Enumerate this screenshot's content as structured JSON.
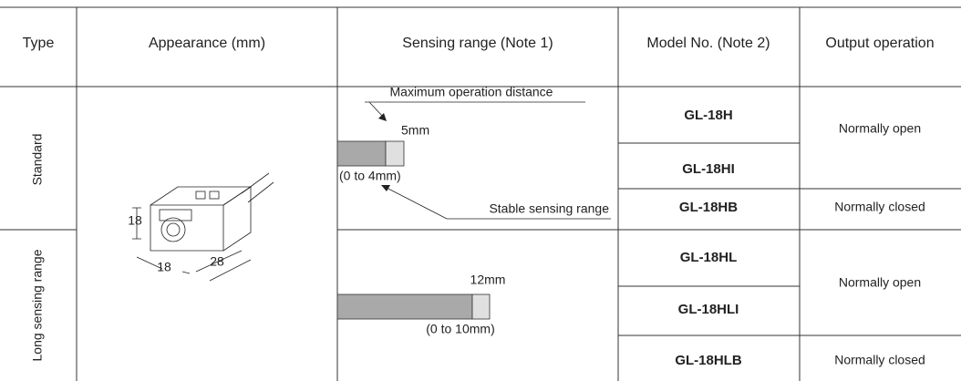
{
  "header": [
    "Type",
    "Appearance (mm)",
    "Sensing range (Note 1)",
    "Model No. (Note 2)",
    "Output operation"
  ],
  "appearance": {
    "dims": [
      "18",
      "18",
      "28"
    ]
  },
  "groups": [
    {
      "type": "Standard",
      "sensing": {
        "max_label": "Maximum operation distance",
        "distance": "5mm",
        "stable": "(0 to 4mm)",
        "stable_label": "Stable sensing range"
      },
      "models": [
        "GL-18H",
        "GL-18HI",
        "GL-18HB"
      ],
      "outputs": [
        "Normally open",
        "Normally closed"
      ]
    },
    {
      "type": "Long sensing range",
      "sensing": {
        "distance": "12mm",
        "stable": "(0 to 10mm)"
      },
      "models": [
        "GL-18HL",
        "GL-18HLI",
        "GL-18HLB"
      ],
      "outputs": [
        "Normally open",
        "Normally closed"
      ]
    }
  ]
}
